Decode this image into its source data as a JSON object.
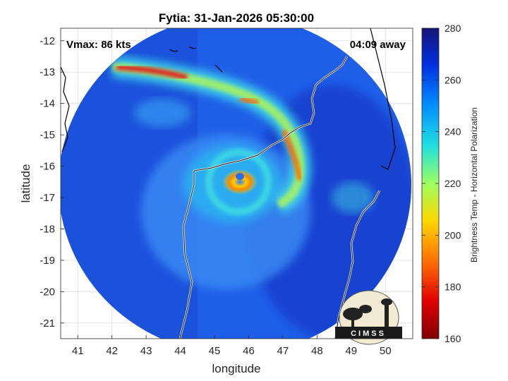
{
  "chart_data": {
    "type": "heatmap",
    "title": "Fytia: 31-Jan-2026 05:30:00",
    "annotation_left": "Vmax: 86 kts",
    "annotation_right": "04:09 away",
    "xlabel": "longitude",
    "ylabel": "latitude",
    "xlim": [
      40.5,
      50.8
    ],
    "ylim": [
      -21.5,
      -11.6
    ],
    "xticks": [
      41,
      42,
      43,
      44,
      45,
      46,
      47,
      48,
      49,
      50
    ],
    "yticks": [
      -12,
      -13,
      -14,
      -15,
      -16,
      -17,
      -18,
      -19,
      -20,
      -21
    ],
    "grid": true,
    "colorbar": {
      "label": "Brightness Temp - Horizontal Polarization",
      "range": [
        160,
        280
      ],
      "ticks": [
        160,
        180,
        200,
        220,
        240,
        260,
        280
      ]
    },
    "storm_center": {
      "lon": 45.8,
      "lat": -16.4
    },
    "logo": "CIMSS",
    "colors": {
      "low": "#7f0000",
      "high": "#1a237e"
    }
  }
}
